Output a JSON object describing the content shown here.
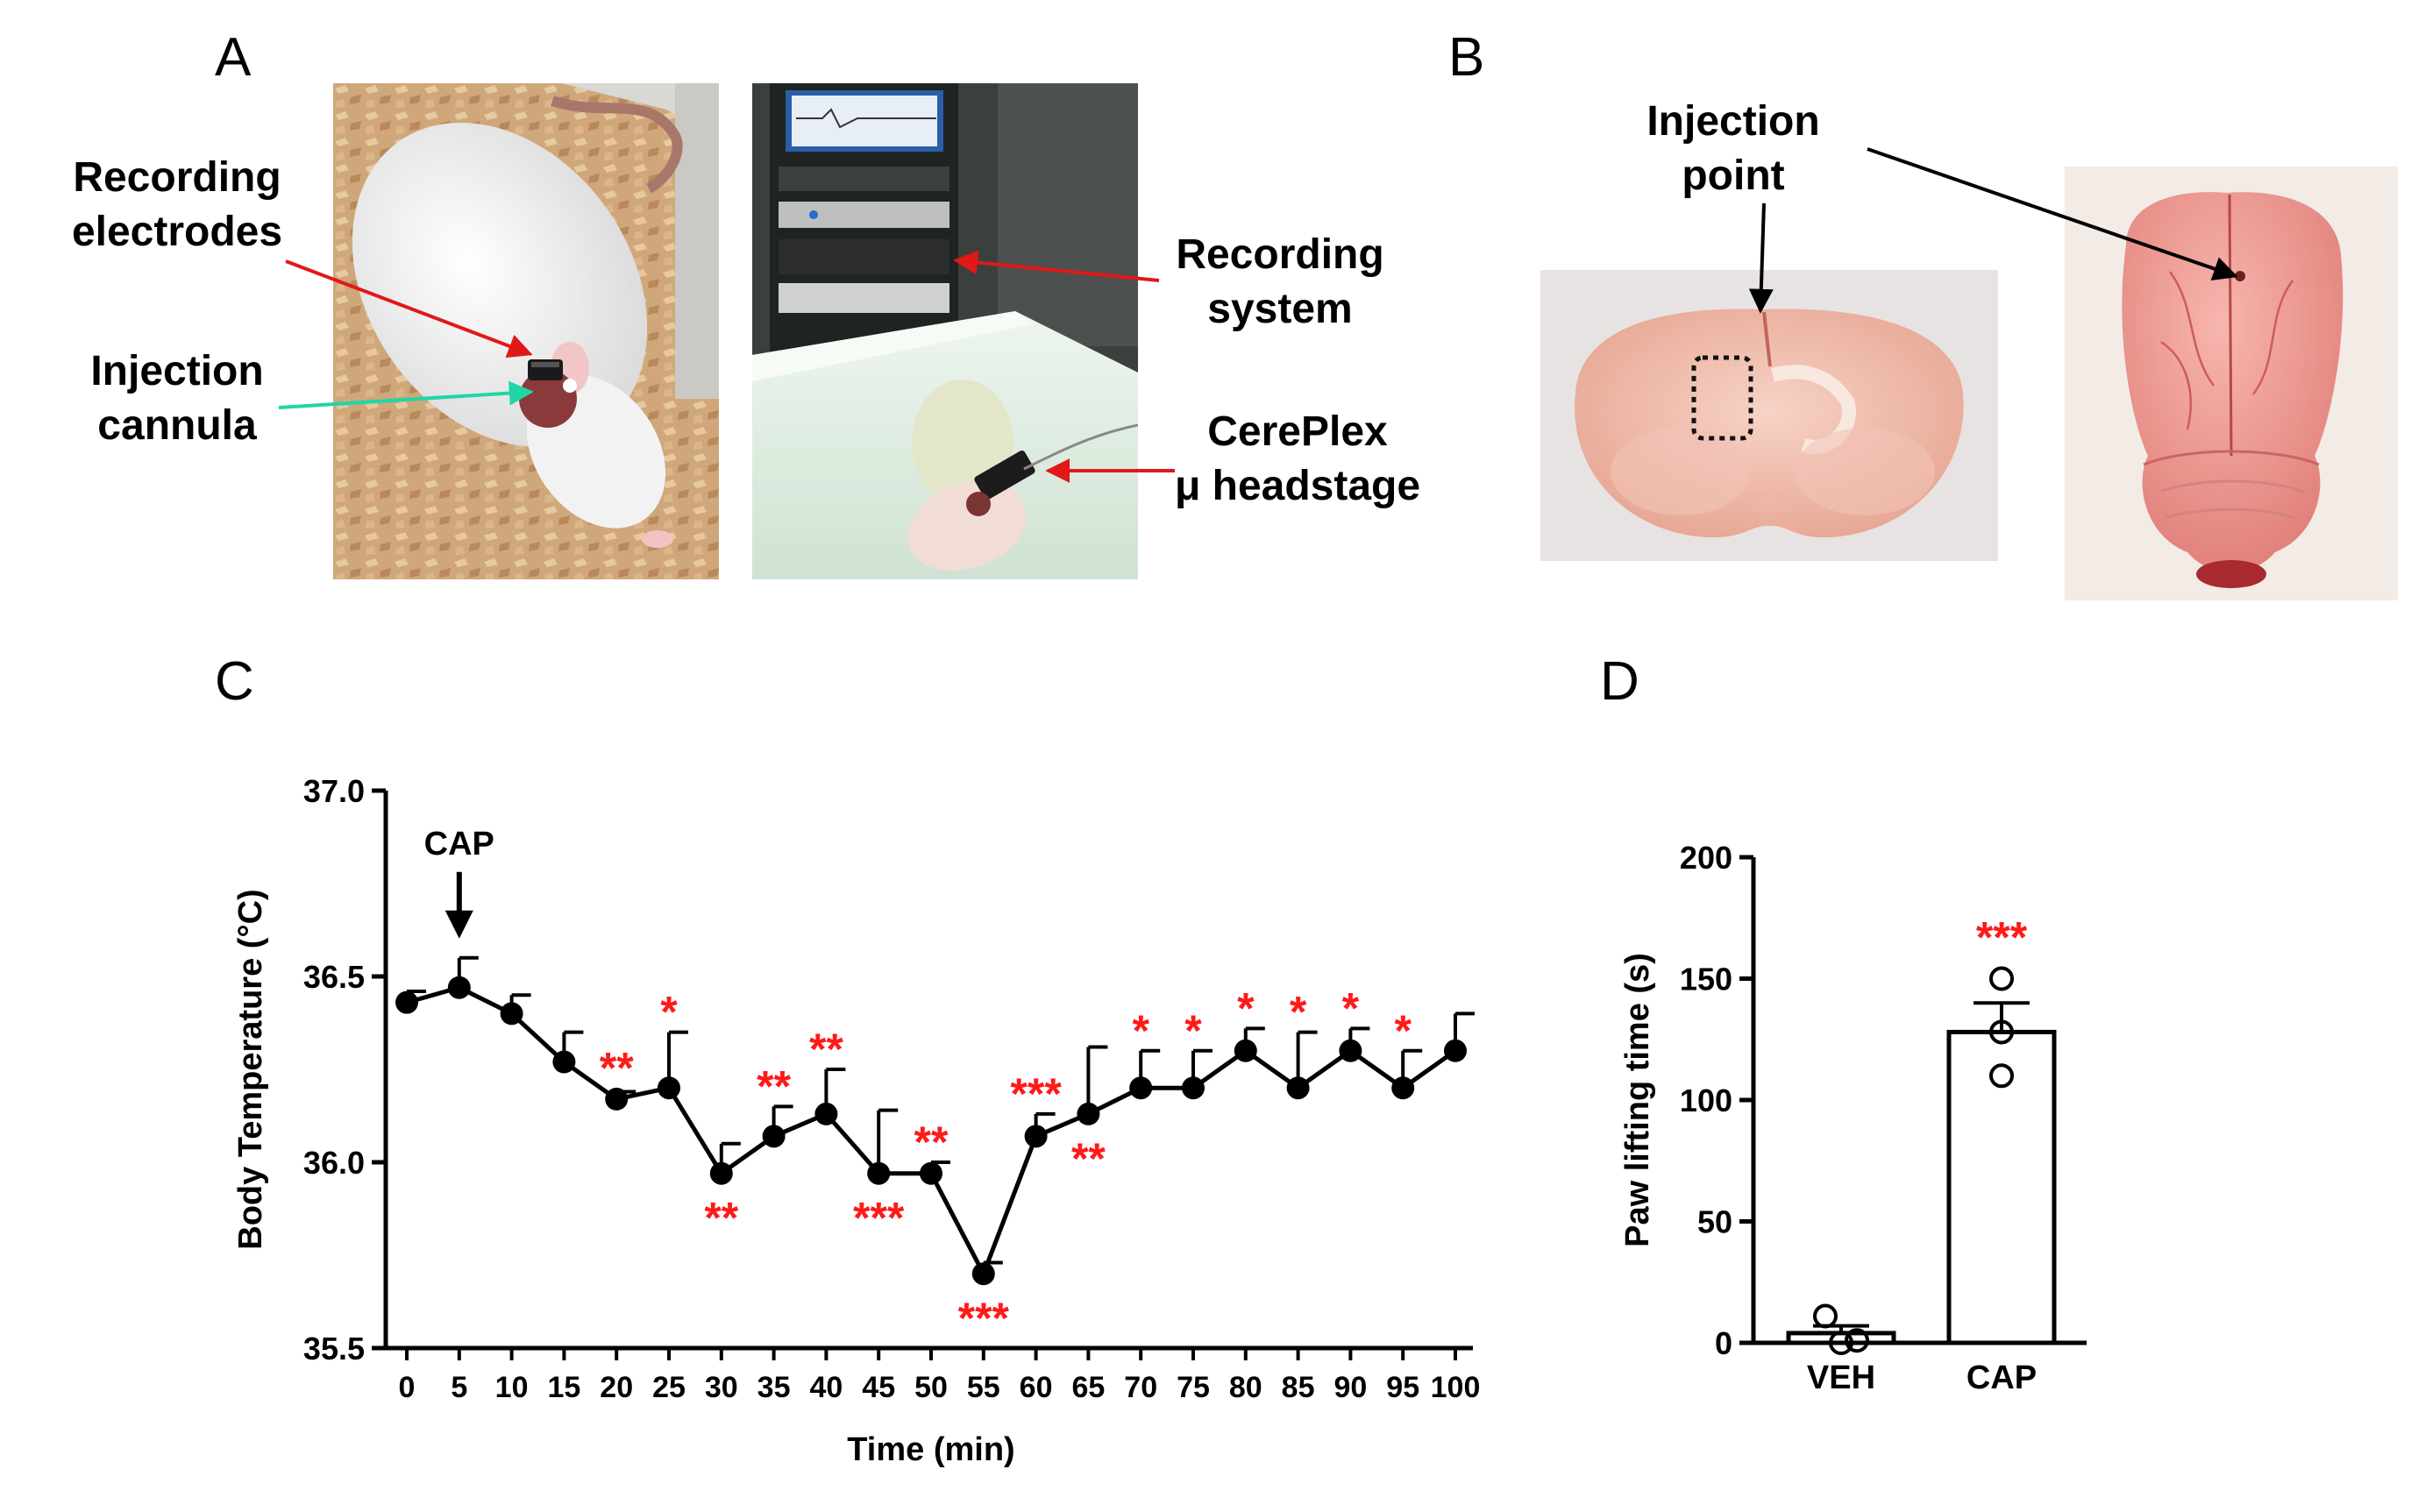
{
  "panels": {
    "A": "A",
    "B": "B",
    "C": "C",
    "D": "D"
  },
  "panel_a": {
    "label_recording_electrodes": [
      "Recording",
      "electrodes"
    ],
    "label_injection_cannula": [
      "Injection",
      "cannula"
    ],
    "label_recording_system": [
      "Recording",
      "system"
    ],
    "label_headstage": [
      "CerePlex",
      "μ headstage"
    ]
  },
  "panel_b": {
    "label_injection_point": [
      "Injection",
      "point"
    ]
  },
  "colors": {
    "significance": "#ff1a1a",
    "arrow_red": "#e01818",
    "arrow_teal": "#1fd6a6",
    "line": "#000000"
  },
  "chart_data": [
    {
      "panel": "C",
      "type": "line",
      "xlabel": "Time (min)",
      "ylabel": "Body Temperature (°C)",
      "ylim": [
        35.5,
        37.0
      ],
      "yticks": [
        "35.5",
        "36.0",
        "36.5",
        "37.0"
      ],
      "x": [
        0,
        5,
        10,
        15,
        20,
        25,
        30,
        35,
        40,
        45,
        50,
        55,
        60,
        65,
        70,
        75,
        80,
        85,
        90,
        95,
        100
      ],
      "xtick_labels": [
        "0",
        "5",
        "10",
        "15",
        "20",
        "25",
        "30",
        "35",
        "40",
        "45",
        "50",
        "55",
        "60",
        "65",
        "70",
        "75",
        "80",
        "85",
        "90",
        "95",
        "100"
      ],
      "values": [
        36.43,
        36.47,
        36.4,
        36.27,
        36.17,
        36.2,
        35.97,
        36.07,
        36.13,
        35.97,
        35.97,
        35.7,
        36.07,
        36.13,
        36.2,
        36.2,
        36.3,
        36.2,
        36.3,
        36.2,
        36.3
      ],
      "error_upper": [
        0.03,
        0.08,
        0.05,
        0.08,
        0.02,
        0.15,
        0.08,
        0.08,
        0.12,
        0.17,
        0.03,
        0.03,
        0.06,
        0.18,
        0.1,
        0.1,
        0.06,
        0.15,
        0.06,
        0.1,
        0.1
      ],
      "annotation": {
        "text": "CAP",
        "x": 5
      },
      "significance": [
        {
          "x": 20,
          "text": "**",
          "position": "above"
        },
        {
          "x": 25,
          "text": "*",
          "position": "above"
        },
        {
          "x": 30,
          "text": "**",
          "position": "below"
        },
        {
          "x": 35,
          "text": "**",
          "position": "above"
        },
        {
          "x": 40,
          "text": "**",
          "position": "above"
        },
        {
          "x": 45,
          "text": "***",
          "position": "below"
        },
        {
          "x": 50,
          "text": "**",
          "position": "above"
        },
        {
          "x": 55,
          "text": "***",
          "position": "below"
        },
        {
          "x": 60,
          "text": "***",
          "position": "above"
        },
        {
          "x": 65,
          "text": "**",
          "position": "below"
        },
        {
          "x": 70,
          "text": "*",
          "position": "above"
        },
        {
          "x": 75,
          "text": "*",
          "position": "above"
        },
        {
          "x": 80,
          "text": "*",
          "position": "above"
        },
        {
          "x": 85,
          "text": "*",
          "position": "above"
        },
        {
          "x": 90,
          "text": "*",
          "position": "above"
        },
        {
          "x": 95,
          "text": "*",
          "position": "above"
        }
      ]
    },
    {
      "panel": "D",
      "type": "bar",
      "ylabel": "Paw lifting time (s)",
      "ylim": [
        0,
        200
      ],
      "yticks": [
        "0",
        "50",
        "100",
        "150",
        "200"
      ],
      "categories": [
        "VEH",
        "CAP"
      ],
      "values": [
        4,
        128
      ],
      "error_upper": [
        3,
        12
      ],
      "points": [
        [
          11,
          0,
          1
        ],
        [
          150,
          128,
          110
        ]
      ],
      "significance": [
        {
          "category": "CAP",
          "text": "***"
        }
      ]
    }
  ]
}
